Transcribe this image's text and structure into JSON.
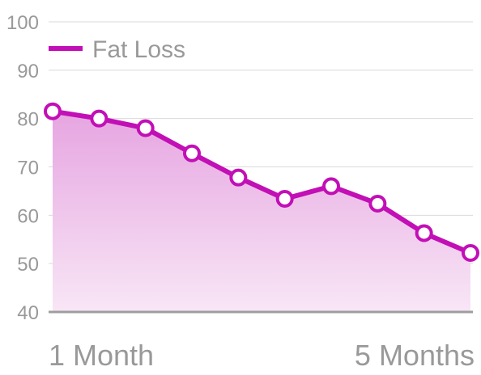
{
  "chart_data": {
    "type": "area",
    "title": "",
    "xlabel": "",
    "ylabel": "",
    "x_tick_labels": [
      "1 Month",
      "5 Months"
    ],
    "y_ticks": [
      100,
      90,
      80,
      70,
      60,
      50,
      40
    ],
    "ylim": [
      40,
      100
    ],
    "grid": true,
    "legend": "top-left",
    "series": [
      {
        "name": "Fat Loss",
        "color": "#c20fb6",
        "values": [
          81.5,
          80,
          78,
          72.8,
          67.8,
          63.4,
          66,
          62.4,
          56.3,
          52.2
        ]
      }
    ]
  },
  "colors": {
    "line": "#c20fb6",
    "fill_top": "#e6a5e1",
    "fill_bottom": "#f8e6f6",
    "grid": "#d9d9d9",
    "baseline": "#9e9e9e",
    "text": "#999999"
  }
}
